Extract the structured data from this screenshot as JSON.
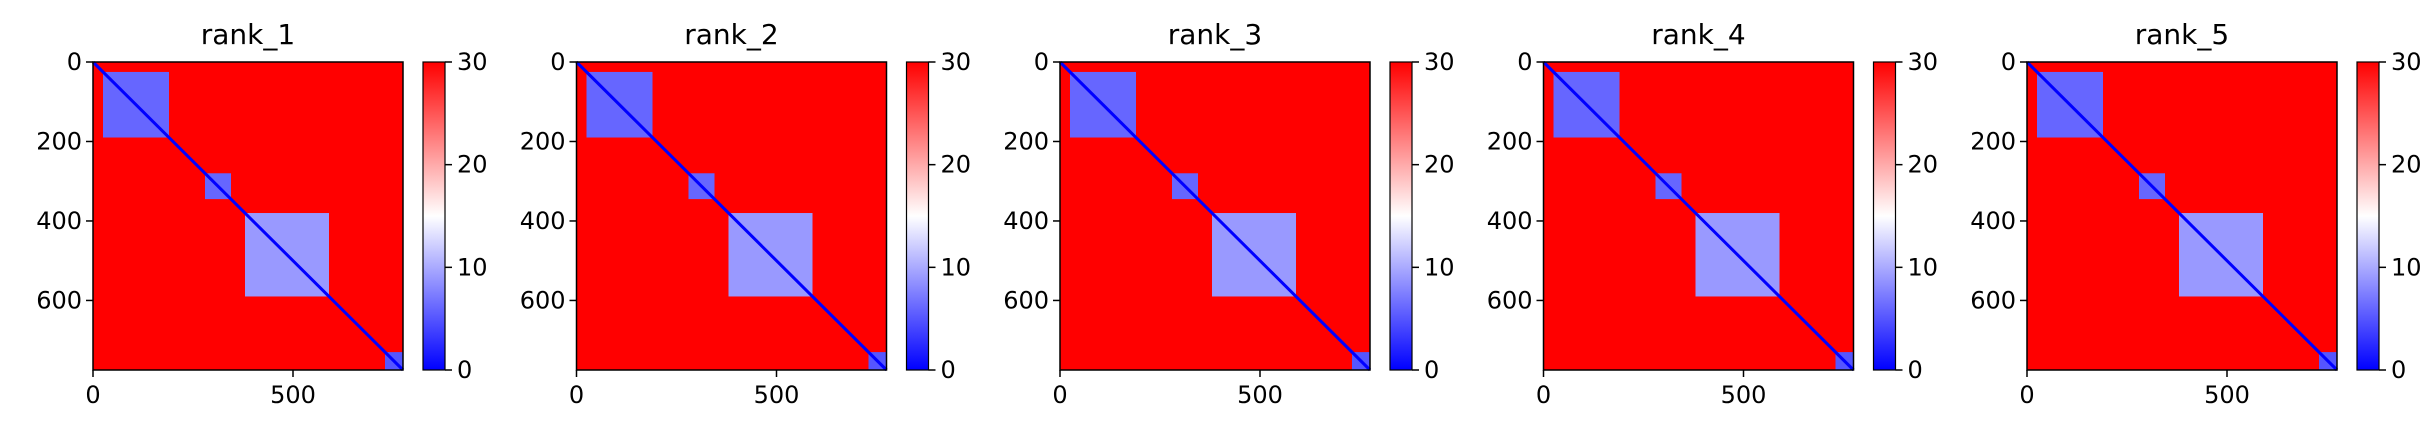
{
  "figure": {
    "panel_count": 5
  },
  "chart_data": [
    {
      "type": "heatmap",
      "title": "rank_1",
      "matrix_size": 775,
      "xlim": [
        0,
        775
      ],
      "ylim": [
        775,
        0
      ],
      "xticks": [
        0,
        500
      ],
      "yticks": [
        0,
        200,
        400,
        600
      ],
      "colorbar": {
        "min": 0,
        "max": 30,
        "ticks": [
          0,
          10,
          20,
          30
        ],
        "colors": [
          "#0000ff",
          "#ffffff",
          "#ff0000"
        ]
      },
      "diagonal_value": 0,
      "background_value": 30,
      "low_distance_blocks": [
        {
          "start": 25,
          "end": 190,
          "value": 6
        },
        {
          "start": 280,
          "end": 345,
          "value": 6
        },
        {
          "start": 380,
          "end": 590,
          "value": 9
        },
        {
          "start": 730,
          "end": 775,
          "value": 5
        }
      ]
    },
    {
      "type": "heatmap",
      "title": "rank_2",
      "matrix_size": 775,
      "xlim": [
        0,
        775
      ],
      "ylim": [
        775,
        0
      ],
      "xticks": [
        0,
        500
      ],
      "yticks": [
        0,
        200,
        400,
        600
      ],
      "colorbar": {
        "min": 0,
        "max": 30,
        "ticks": [
          0,
          10,
          20,
          30
        ],
        "colors": [
          "#0000ff",
          "#ffffff",
          "#ff0000"
        ]
      },
      "diagonal_value": 0,
      "background_value": 30,
      "low_distance_blocks": [
        {
          "start": 25,
          "end": 190,
          "value": 6
        },
        {
          "start": 280,
          "end": 345,
          "value": 6
        },
        {
          "start": 380,
          "end": 590,
          "value": 9
        },
        {
          "start": 730,
          "end": 775,
          "value": 5
        }
      ]
    },
    {
      "type": "heatmap",
      "title": "rank_3",
      "matrix_size": 775,
      "xlim": [
        0,
        775
      ],
      "ylim": [
        775,
        0
      ],
      "xticks": [
        0,
        500
      ],
      "yticks": [
        0,
        200,
        400,
        600
      ],
      "colorbar": {
        "min": 0,
        "max": 30,
        "ticks": [
          0,
          10,
          20,
          30
        ],
        "colors": [
          "#0000ff",
          "#ffffff",
          "#ff0000"
        ]
      },
      "diagonal_value": 0,
      "background_value": 30,
      "low_distance_blocks": [
        {
          "start": 25,
          "end": 190,
          "value": 6
        },
        {
          "start": 280,
          "end": 345,
          "value": 6
        },
        {
          "start": 380,
          "end": 590,
          "value": 9
        },
        {
          "start": 730,
          "end": 775,
          "value": 5
        }
      ]
    },
    {
      "type": "heatmap",
      "title": "rank_4",
      "matrix_size": 775,
      "xlim": [
        0,
        775
      ],
      "ylim": [
        775,
        0
      ],
      "xticks": [
        0,
        500
      ],
      "yticks": [
        0,
        200,
        400,
        600
      ],
      "colorbar": {
        "min": 0,
        "max": 30,
        "ticks": [
          0,
          10,
          20,
          30
        ],
        "colors": [
          "#0000ff",
          "#ffffff",
          "#ff0000"
        ]
      },
      "diagonal_value": 0,
      "background_value": 30,
      "low_distance_blocks": [
        {
          "start": 25,
          "end": 190,
          "value": 6
        },
        {
          "start": 280,
          "end": 345,
          "value": 6
        },
        {
          "start": 380,
          "end": 590,
          "value": 9
        },
        {
          "start": 730,
          "end": 775,
          "value": 5
        }
      ]
    },
    {
      "type": "heatmap",
      "title": "rank_5",
      "matrix_size": 775,
      "xlim": [
        0,
        775
      ],
      "ylim": [
        775,
        0
      ],
      "xticks": [
        0,
        500
      ],
      "yticks": [
        0,
        200,
        400,
        600
      ],
      "colorbar": {
        "min": 0,
        "max": 30,
        "ticks": [
          0,
          10,
          20,
          30
        ],
        "colors": [
          "#0000ff",
          "#ffffff",
          "#ff0000"
        ]
      },
      "diagonal_value": 0,
      "background_value": 30,
      "low_distance_blocks": [
        {
          "start": 25,
          "end": 190,
          "value": 6
        },
        {
          "start": 280,
          "end": 345,
          "value": 6
        },
        {
          "start": 380,
          "end": 590,
          "value": 9
        },
        {
          "start": 730,
          "end": 775,
          "value": 5
        }
      ]
    }
  ]
}
